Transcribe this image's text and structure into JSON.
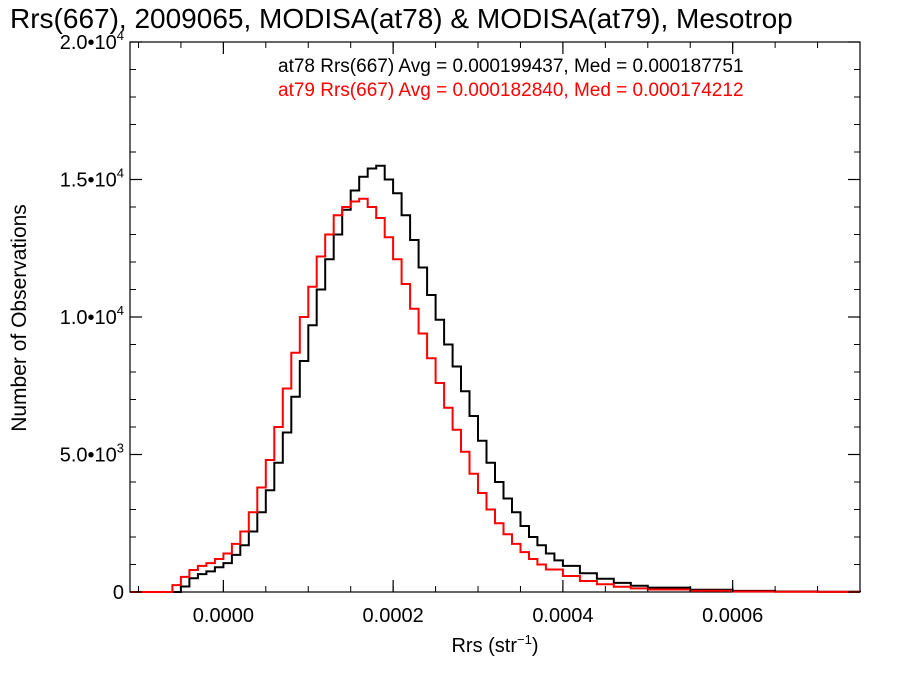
{
  "chart_data": {
    "type": "line",
    "title": "Rrs(667), 2009065, MODISA(at78) & MODISA(at79), Mesotrop",
    "xlabel_main": "Rrs (str",
    "xlabel_sup": "−1",
    "xlabel_end": ")",
    "ylabel": "Number of Observations",
    "xlim": [
      -0.00011,
      0.00075
    ],
    "ylim": [
      0,
      20000
    ],
    "grid": false,
    "xticks": [
      {
        "value": 0.0,
        "label": "0.0000"
      },
      {
        "value": 0.0002,
        "label": "0.0002"
      },
      {
        "value": 0.0004,
        "label": "0.0004"
      },
      {
        "value": 0.0006,
        "label": "0.0006"
      }
    ],
    "yticks": [
      {
        "value": 0,
        "mant": "0",
        "exp": ""
      },
      {
        "value": 5000,
        "mant": "5.0•10",
        "exp": "3"
      },
      {
        "value": 10000,
        "mant": "1.0•10",
        "exp": "4"
      },
      {
        "value": 15000,
        "mant": "1.5•10",
        "exp": "4"
      },
      {
        "value": 20000,
        "mant": "2.0•10",
        "exp": "4"
      }
    ],
    "annotations": [
      {
        "text": "at78 Rrs(667) Avg = 0.000199437, Med = 0.000187751",
        "color": "#000000"
      },
      {
        "text": "at79 Rrs(667) Avg = 0.000182840, Med = 0.000174212",
        "color": "#ff0000"
      }
    ],
    "series": [
      {
        "color": "#000000",
        "points": [
          [
            -0.00011,
            0
          ],
          [
            -6e-05,
            0
          ],
          [
            -5e-05,
            200
          ],
          [
            -4e-05,
            500
          ],
          [
            -3e-05,
            650
          ],
          [
            -2e-05,
            750
          ],
          [
            -1e-05,
            900
          ],
          [
            0.0,
            1050
          ],
          [
            1e-05,
            1350
          ],
          [
            2e-05,
            1700
          ],
          [
            3e-05,
            2200
          ],
          [
            4e-05,
            2900
          ],
          [
            5e-05,
            3700
          ],
          [
            6e-05,
            4700
          ],
          [
            7e-05,
            5800
          ],
          [
            8e-05,
            7100
          ],
          [
            9e-05,
            8400
          ],
          [
            0.0001,
            9700
          ],
          [
            0.00011,
            11000
          ],
          [
            0.00012,
            12100
          ],
          [
            0.00013,
            13000
          ],
          [
            0.00014,
            13900
          ],
          [
            0.00015,
            14600
          ],
          [
            0.00016,
            15100
          ],
          [
            0.00017,
            15400
          ],
          [
            0.00018,
            15500
          ],
          [
            0.00019,
            15000
          ],
          [
            0.0002,
            14500
          ],
          [
            0.00021,
            13700
          ],
          [
            0.00022,
            12800
          ],
          [
            0.00023,
            11800
          ],
          [
            0.00024,
            10800
          ],
          [
            0.00025,
            9900
          ],
          [
            0.00026,
            9000
          ],
          [
            0.00027,
            8200
          ],
          [
            0.00028,
            7300
          ],
          [
            0.00029,
            6400
          ],
          [
            0.0003,
            5500
          ],
          [
            0.00031,
            4700
          ],
          [
            0.00032,
            4000
          ],
          [
            0.00033,
            3400
          ],
          [
            0.00034,
            2900
          ],
          [
            0.00035,
            2400
          ],
          [
            0.00036,
            2000
          ],
          [
            0.00037,
            1700
          ],
          [
            0.00038,
            1400
          ],
          [
            0.00039,
            1150
          ],
          [
            0.0004,
            950
          ],
          [
            0.00042,
            680
          ],
          [
            0.00044,
            480
          ],
          [
            0.00046,
            330
          ],
          [
            0.00048,
            230
          ],
          [
            0.0005,
            160
          ],
          [
            0.00055,
            80
          ],
          [
            0.0006,
            40
          ],
          [
            0.00065,
            20
          ],
          [
            0.0007,
            10
          ],
          [
            0.00075,
            5
          ]
        ]
      },
      {
        "color": "#ff0000",
        "points": [
          [
            -0.00011,
            0
          ],
          [
            -7e-05,
            0
          ],
          [
            -6e-05,
            250
          ],
          [
            -5e-05,
            550
          ],
          [
            -4e-05,
            800
          ],
          [
            -3e-05,
            950
          ],
          [
            -2e-05,
            1050
          ],
          [
            -1e-05,
            1200
          ],
          [
            0.0,
            1400
          ],
          [
            1e-05,
            1750
          ],
          [
            2e-05,
            2200
          ],
          [
            3e-05,
            2900
          ],
          [
            4e-05,
            3800
          ],
          [
            5e-05,
            4800
          ],
          [
            6e-05,
            6000
          ],
          [
            7e-05,
            7400
          ],
          [
            8e-05,
            8700
          ],
          [
            9e-05,
            10000
          ],
          [
            0.0001,
            11100
          ],
          [
            0.00011,
            12200
          ],
          [
            0.00012,
            13000
          ],
          [
            0.00013,
            13700
          ],
          [
            0.00014,
            14000
          ],
          [
            0.00015,
            14200
          ],
          [
            0.00016,
            14300
          ],
          [
            0.00017,
            14000
          ],
          [
            0.00018,
            13600
          ],
          [
            0.00019,
            12900
          ],
          [
            0.0002,
            12100
          ],
          [
            0.00021,
            11200
          ],
          [
            0.00022,
            10300
          ],
          [
            0.00023,
            9400
          ],
          [
            0.00024,
            8500
          ],
          [
            0.00025,
            7600
          ],
          [
            0.00026,
            6700
          ],
          [
            0.00027,
            5900
          ],
          [
            0.00028,
            5100
          ],
          [
            0.00029,
            4300
          ],
          [
            0.0003,
            3600
          ],
          [
            0.00031,
            3000
          ],
          [
            0.00032,
            2500
          ],
          [
            0.00033,
            2100
          ],
          [
            0.00034,
            1750
          ],
          [
            0.00035,
            1450
          ],
          [
            0.00036,
            1200
          ],
          [
            0.00037,
            1000
          ],
          [
            0.00038,
            820
          ],
          [
            0.0004,
            580
          ],
          [
            0.00042,
            400
          ],
          [
            0.00044,
            280
          ],
          [
            0.00046,
            190
          ],
          [
            0.00048,
            130
          ],
          [
            0.0005,
            90
          ],
          [
            0.00055,
            45
          ],
          [
            0.0006,
            20
          ],
          [
            0.00065,
            10
          ],
          [
            0.0007,
            5
          ],
          [
            0.00075,
            2
          ]
        ]
      }
    ]
  }
}
